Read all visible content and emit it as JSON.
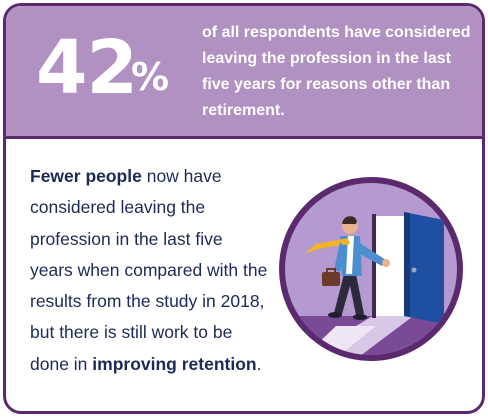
{
  "stat": {
    "number": "42",
    "unit": "%",
    "description": "of all respondents have considered leaving the profession in the last five years for reasons other than retirement."
  },
  "body": {
    "lead": "Fewer people",
    "middle": " now have considered leaving the profession in the last five years when compared with the results from the study in 2018, but there is still work to be done in ",
    "emphasis": "improving retention",
    "end": "."
  },
  "illustration": {
    "icon": "person-leaving-through-door-icon"
  },
  "colors": {
    "header_bg": "#b190c2",
    "border": "#5b2a6e",
    "text": "#1c2a55",
    "door": "#1f4fa0"
  }
}
